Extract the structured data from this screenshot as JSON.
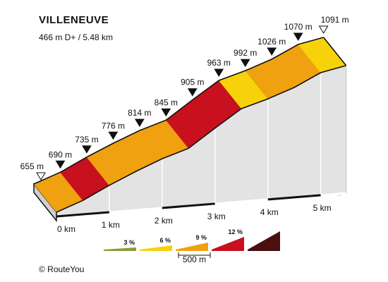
{
  "header": {
    "title": "VILLENEUVE",
    "subtitle": "466 m D+ / 5.48 km"
  },
  "footer": {
    "copyright": "© RouteYou"
  },
  "colors": {
    "grade_0_3": "#8b9a3a",
    "grade_3_6": "#f7d20a",
    "grade_6_9": "#f0a10f",
    "grade_9_12": "#c8101e",
    "grade_12_plus": "#4a0f0f",
    "side_wall": "#e6e2df",
    "front_wall": "#e3e3e3",
    "edge": "#111111"
  },
  "chart_data": {
    "type": "area",
    "title": "VILLENEUVE",
    "subtitle": "466 m D+ / 5.48 km",
    "xlabel": "",
    "ylabel": "",
    "x_unit": "km",
    "y_unit": "m",
    "km_ticks": [
      {
        "km": 0,
        "label": "0 km"
      },
      {
        "km": 1,
        "label": "1 km"
      },
      {
        "km": 2,
        "label": "2 km"
      },
      {
        "km": 3,
        "label": "3 km"
      },
      {
        "km": 4,
        "label": "4 km"
      },
      {
        "km": 5,
        "label": "5 km"
      }
    ],
    "points": [
      {
        "km": 0.0,
        "elev": 655,
        "label": "655 m",
        "marker": "open"
      },
      {
        "km": 0.5,
        "elev": 690,
        "label": "690 m",
        "marker": "filled"
      },
      {
        "km": 1.0,
        "elev": 735,
        "label": "735 m",
        "marker": "filled"
      },
      {
        "km": 1.5,
        "elev": 776,
        "label": "776 m",
        "marker": "filled"
      },
      {
        "km": 2.0,
        "elev": 814,
        "label": "814 m",
        "marker": "filled"
      },
      {
        "km": 2.5,
        "elev": 845,
        "label": "845 m",
        "marker": "filled"
      },
      {
        "km": 3.0,
        "elev": 905,
        "label": "905 m",
        "marker": "filled"
      },
      {
        "km": 3.5,
        "elev": 963,
        "label": "963 m",
        "marker": "filled"
      },
      {
        "km": 4.0,
        "elev": 992,
        "label": "992 m",
        "marker": "filled"
      },
      {
        "km": 4.5,
        "elev": 1026,
        "label": "1026 m",
        "marker": "filled"
      },
      {
        "km": 5.0,
        "elev": 1070,
        "label": "1070 m",
        "marker": "filled"
      },
      {
        "km": 5.48,
        "elev": 1091,
        "label": "1091 m",
        "marker": "open"
      }
    ],
    "segment_grades": [
      "grade_6_9",
      "grade_9_12",
      "grade_6_9",
      "grade_6_9",
      "grade_6_9",
      "grade_9_12",
      "grade_9_12",
      "grade_3_6",
      "grade_6_9",
      "grade_6_9",
      "grade_3_6"
    ],
    "legend": [
      {
        "label": "3 %",
        "color_key": "grade_0_3"
      },
      {
        "label": "6 %",
        "color_key": "grade_3_6"
      },
      {
        "label": "9 %",
        "color_key": "grade_6_9"
      },
      {
        "label": "12 %",
        "color_key": "grade_9_12"
      },
      {
        "label": "",
        "color_key": "grade_12_plus"
      }
    ],
    "scale_bar_label": "500 m"
  }
}
